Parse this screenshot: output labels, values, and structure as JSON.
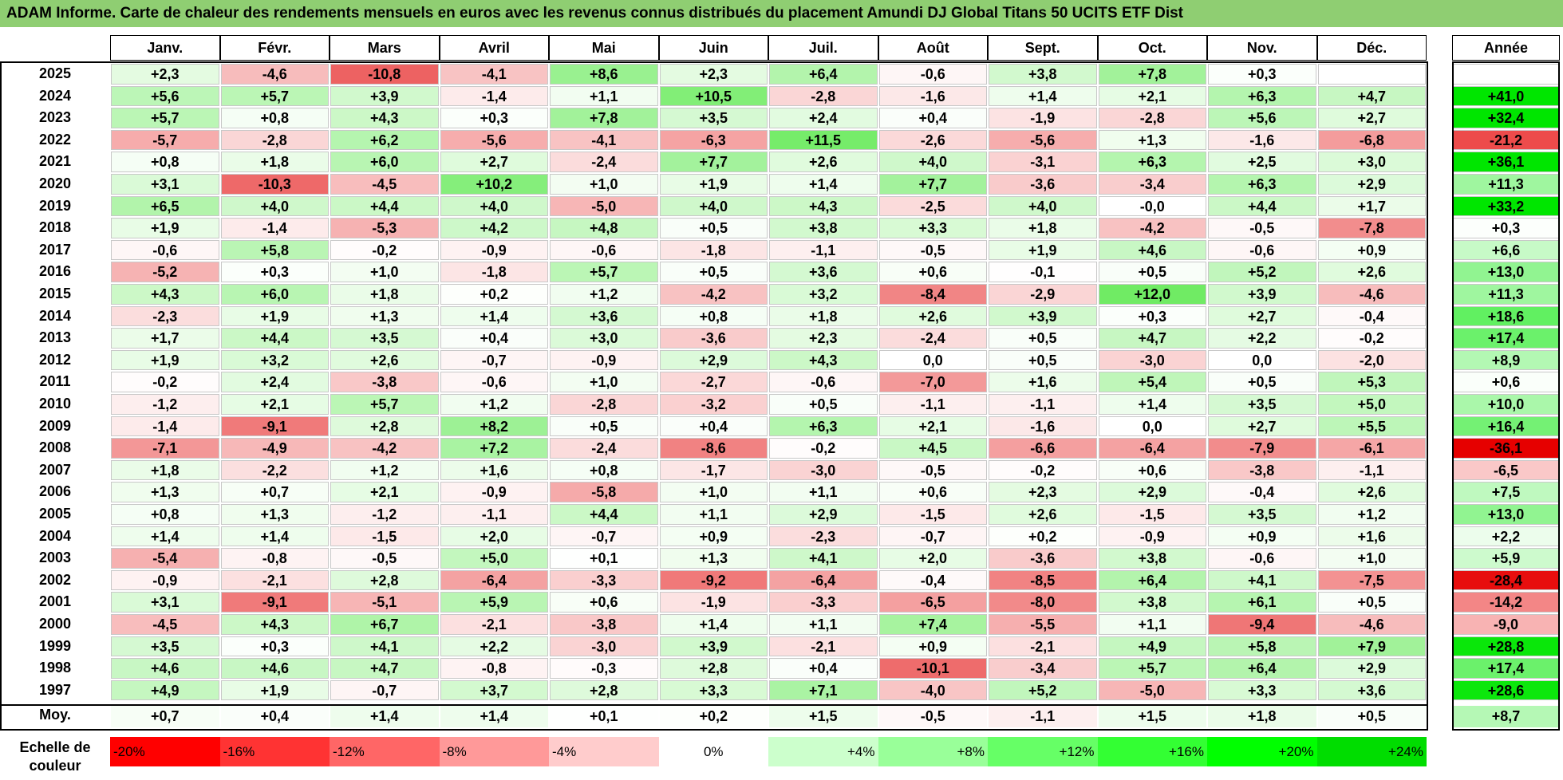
{
  "title": "ADAM Informe. Carte de chaleur des rendements mensuels en euros avec les revenus connus distribués du placement Amundi DJ Global Titans 50 UCITS ETF Dist",
  "chart_data": {
    "type": "heatmap",
    "months": [
      "Janv.",
      "Févr.",
      "Mars",
      "Avril",
      "Mai",
      "Juin",
      "Juil.",
      "Août",
      "Sept.",
      "Oct.",
      "Nov.",
      "Déc."
    ],
    "year_column_label": "Année",
    "avg_row_label": "Moy.",
    "rows": [
      {
        "year": "2025",
        "values": [
          "+2,3",
          "-4,6",
          "-10,8",
          "-4,1",
          "+8,6",
          "+2,3",
          "+6,4",
          "-0,6",
          "+3,8",
          "+7,8",
          "+0,3",
          ""
        ],
        "annual": ""
      },
      {
        "year": "2024",
        "values": [
          "+5,6",
          "+5,7",
          "+3,9",
          "-1,4",
          "+1,1",
          "+10,5",
          "-2,8",
          "-1,6",
          "+1,4",
          "+2,1",
          "+6,3",
          "+4,7"
        ],
        "annual": "+41,0"
      },
      {
        "year": "2023",
        "values": [
          "+5,7",
          "+0,8",
          "+4,3",
          "+0,3",
          "+7,8",
          "+3,5",
          "+2,4",
          "+0,4",
          "-1,9",
          "-2,8",
          "+5,6",
          "+2,7"
        ],
        "annual": "+32,4"
      },
      {
        "year": "2022",
        "values": [
          "-5,7",
          "-2,8",
          "+6,2",
          "-5,6",
          "-4,1",
          "-6,3",
          "+11,5",
          "-2,6",
          "-5,6",
          "+1,3",
          "-1,6",
          "-6,8"
        ],
        "annual": "-21,2"
      },
      {
        "year": "2021",
        "values": [
          "+0,8",
          "+1,8",
          "+6,0",
          "+2,7",
          "-2,4",
          "+7,7",
          "+2,6",
          "+4,0",
          "-3,1",
          "+6,3",
          "+2,5",
          "+3,0"
        ],
        "annual": "+36,1"
      },
      {
        "year": "2020",
        "values": [
          "+3,1",
          "-10,3",
          "-4,5",
          "+10,2",
          "+1,0",
          "+1,9",
          "+1,4",
          "+7,7",
          "-3,6",
          "-3,4",
          "+6,3",
          "+2,9"
        ],
        "annual": "+11,3"
      },
      {
        "year": "2019",
        "values": [
          "+6,5",
          "+4,0",
          "+4,4",
          "+4,0",
          "-5,0",
          "+4,0",
          "+4,3",
          "-2,5",
          "+4,0",
          "-0,0",
          "+4,4",
          "+1,7"
        ],
        "annual": "+33,2"
      },
      {
        "year": "2018",
        "values": [
          "+1,9",
          "-1,4",
          "-5,3",
          "+4,2",
          "+4,8",
          "+0,5",
          "+3,8",
          "+3,3",
          "+1,8",
          "-4,2",
          "-0,5",
          "-7,8"
        ],
        "annual": "+0,3"
      },
      {
        "year": "2017",
        "values": [
          "-0,6",
          "+5,8",
          "-0,2",
          "-0,9",
          "-0,6",
          "-1,8",
          "-1,1",
          "-0,5",
          "+1,9",
          "+4,6",
          "-0,6",
          "+0,9"
        ],
        "annual": "+6,6"
      },
      {
        "year": "2016",
        "values": [
          "-5,2",
          "+0,3",
          "+1,0",
          "-1,8",
          "+5,7",
          "+0,5",
          "+3,6",
          "+0,6",
          "-0,1",
          "+0,5",
          "+5,2",
          "+2,6"
        ],
        "annual": "+13,0"
      },
      {
        "year": "2015",
        "values": [
          "+4,3",
          "+6,0",
          "+1,8",
          "+0,2",
          "+1,2",
          "-4,2",
          "+3,2",
          "-8,4",
          "-2,9",
          "+12,0",
          "+3,9",
          "-4,6"
        ],
        "annual": "+11,3"
      },
      {
        "year": "2014",
        "values": [
          "-2,3",
          "+1,9",
          "+1,3",
          "+1,4",
          "+3,6",
          "+0,8",
          "+1,8",
          "+2,6",
          "+3,9",
          "+0,3",
          "+2,7",
          "-0,4"
        ],
        "annual": "+18,6"
      },
      {
        "year": "2013",
        "values": [
          "+1,7",
          "+4,4",
          "+3,5",
          "+0,4",
          "+3,0",
          "-3,6",
          "+2,3",
          "-2,4",
          "+0,5",
          "+4,7",
          "+2,2",
          "-0,2"
        ],
        "annual": "+17,4"
      },
      {
        "year": "2012",
        "values": [
          "+1,9",
          "+3,2",
          "+2,6",
          "-0,7",
          "-0,9",
          "+2,9",
          "+4,3",
          "0,0",
          "+0,5",
          "-3,0",
          "0,0",
          "-2,0"
        ],
        "annual": "+8,9"
      },
      {
        "year": "2011",
        "values": [
          "-0,2",
          "+2,4",
          "-3,8",
          "-0,6",
          "+1,0",
          "-2,7",
          "-0,6",
          "-7,0",
          "+1,6",
          "+5,4",
          "+0,5",
          "+5,3"
        ],
        "annual": "+0,6"
      },
      {
        "year": "2010",
        "values": [
          "-1,2",
          "+2,1",
          "+5,7",
          "+1,2",
          "-2,8",
          "-3,2",
          "+0,5",
          "-1,1",
          "-1,1",
          "+1,4",
          "+3,5",
          "+5,0"
        ],
        "annual": "+10,0"
      },
      {
        "year": "2009",
        "values": [
          "-1,4",
          "-9,1",
          "+2,8",
          "+8,2",
          "+0,5",
          "+0,4",
          "+6,3",
          "+2,1",
          "-1,6",
          "0,0",
          "+2,7",
          "+5,5"
        ],
        "annual": "+16,4"
      },
      {
        "year": "2008",
        "values": [
          "-7,1",
          "-4,9",
          "-4,2",
          "+7,2",
          "-2,4",
          "-8,6",
          "-0,2",
          "+4,5",
          "-6,6",
          "-6,4",
          "-7,9",
          "-6,1"
        ],
        "annual": "-36,1"
      },
      {
        "year": "2007",
        "values": [
          "+1,8",
          "-2,2",
          "+1,2",
          "+1,6",
          "+0,8",
          "-1,7",
          "-3,0",
          "-0,5",
          "-0,2",
          "+0,6",
          "-3,8",
          "-1,1"
        ],
        "annual": "-6,5"
      },
      {
        "year": "2006",
        "values": [
          "+1,3",
          "+0,7",
          "+2,1",
          "-0,9",
          "-5,8",
          "+1,0",
          "+1,1",
          "+0,6",
          "+2,3",
          "+2,9",
          "-0,4",
          "+2,6"
        ],
        "annual": "+7,5"
      },
      {
        "year": "2005",
        "values": [
          "+0,8",
          "+1,3",
          "-1,2",
          "-1,1",
          "+4,4",
          "+1,1",
          "+2,9",
          "-1,5",
          "+2,6",
          "-1,5",
          "+3,5",
          "+1,2"
        ],
        "annual": "+13,0"
      },
      {
        "year": "2004",
        "values": [
          "+1,4",
          "+1,4",
          "-1,5",
          "+2,0",
          "-0,7",
          "+0,9",
          "-2,3",
          "-0,7",
          "+0,2",
          "-0,9",
          "+0,9",
          "+1,6"
        ],
        "annual": "+2,2"
      },
      {
        "year": "2003",
        "values": [
          "-5,4",
          "-0,8",
          "-0,5",
          "+5,0",
          "+0,1",
          "+1,3",
          "+4,1",
          "+2,0",
          "-3,6",
          "+3,8",
          "-0,6",
          "+1,0"
        ],
        "annual": "+5,9"
      },
      {
        "year": "2002",
        "values": [
          "-0,9",
          "-2,1",
          "+2,8",
          "-6,4",
          "-3,3",
          "-9,2",
          "-6,4",
          "-0,4",
          "-8,5",
          "+6,4",
          "+4,1",
          "-7,5"
        ],
        "annual": "-28,4"
      },
      {
        "year": "2001",
        "values": [
          "+3,1",
          "-9,1",
          "-5,1",
          "+5,9",
          "+0,6",
          "-1,9",
          "-3,3",
          "-6,5",
          "-8,0",
          "+3,8",
          "+6,1",
          "+0,5"
        ],
        "annual": "-14,2"
      },
      {
        "year": "2000",
        "values": [
          "-4,5",
          "+4,3",
          "+6,7",
          "-2,1",
          "-3,8",
          "+1,4",
          "+1,1",
          "+7,4",
          "-5,5",
          "+1,1",
          "-9,4",
          "-4,6"
        ],
        "annual": "-9,0"
      },
      {
        "year": "1999",
        "values": [
          "+3,5",
          "+0,3",
          "+4,1",
          "+2,2",
          "-3,0",
          "+3,9",
          "-2,1",
          "+0,9",
          "-2,1",
          "+4,9",
          "+5,8",
          "+7,9"
        ],
        "annual": "+28,8"
      },
      {
        "year": "1998",
        "values": [
          "+4,6",
          "+4,6",
          "+4,7",
          "-0,8",
          "-0,3",
          "+2,8",
          "+0,4",
          "-10,1",
          "-3,4",
          "+5,7",
          "+6,4",
          "+2,9"
        ],
        "annual": "+17,4"
      },
      {
        "year": "1997",
        "values": [
          "+4,9",
          "+1,9",
          "-0,7",
          "+3,7",
          "+2,8",
          "+3,3",
          "+7,1",
          "-4,0",
          "+5,2",
          "-5,0",
          "+3,3",
          "+3,6"
        ],
        "annual": "+28,6"
      }
    ],
    "averages": {
      "values": [
        "+0,7",
        "+0,4",
        "+1,4",
        "+1,4",
        "+0,1",
        "+0,2",
        "+1,5",
        "-0,5",
        "-1,1",
        "+1,5",
        "+1,8",
        "+0,5"
      ],
      "annual": "+8,7"
    },
    "color_scale": {
      "label": "Echelle de couleur",
      "entries": [
        {
          "label": "-20%",
          "value": -20,
          "color": "#ff0000",
          "align": "left"
        },
        {
          "label": "-16%",
          "value": -16,
          "color": "#ff3333",
          "align": "left"
        },
        {
          "label": "-12%",
          "value": -12,
          "color": "#ff6666",
          "align": "left"
        },
        {
          "label": "-8%",
          "value": -8,
          "color": "#ff9999",
          "align": "left"
        },
        {
          "label": "-4%",
          "value": -4,
          "color": "#ffcccc",
          "align": "left"
        },
        {
          "label": "0%",
          "value": 0,
          "color": "#ffffff",
          "align": "center"
        },
        {
          "label": "+4%",
          "value": 4,
          "color": "#ccffcc",
          "align": "right"
        },
        {
          "label": "+8%",
          "value": 8,
          "color": "#99ff99",
          "align": "right"
        },
        {
          "label": "+12%",
          "value": 12,
          "color": "#66ff66",
          "align": "right"
        },
        {
          "label": "+16%",
          "value": 16,
          "color": "#33ff33",
          "align": "right"
        },
        {
          "label": "+20%",
          "value": 20,
          "color": "#00ff00",
          "align": "right"
        },
        {
          "label": "+24%",
          "value": 24,
          "color": "#00dd00",
          "align": "right"
        }
      ]
    }
  }
}
